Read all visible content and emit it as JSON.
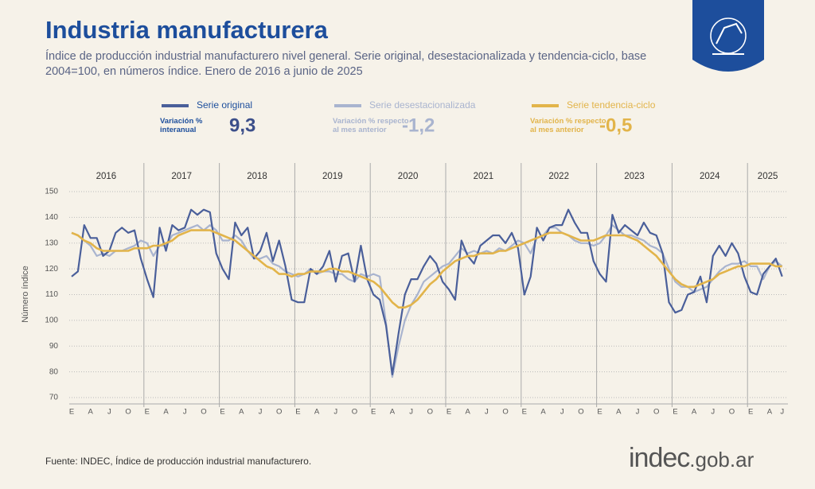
{
  "chart_data": {
    "type": "line",
    "title": "Industria manufacturera",
    "subtitle": "Índice de producción industrial manufacturero nivel general. Serie original, desestacionalizada y tendencia-ciclo, base 2004=100, en números índice. Enero de 2016 a junio de 2025",
    "y_label": "Número índice",
    "source": "Fuente: INDEC, Índice de producción industrial manufacturero.",
    "brand": {
      "name": "indec",
      "domain": ".gob.ar"
    },
    "years": [
      "2016",
      "2017",
      "2018",
      "2019",
      "2020",
      "2021",
      "2022",
      "2023",
      "2024",
      "2025"
    ],
    "categories": [
      "E",
      null,
      null,
      "A",
      null,
      null,
      "J",
      null,
      null,
      "O",
      null,
      null,
      "E",
      null,
      null,
      "A",
      null,
      null,
      "J",
      null,
      null,
      "O",
      null,
      null,
      "E",
      null,
      null,
      "A",
      null,
      null,
      "J",
      null,
      null,
      "O",
      null,
      null,
      "E",
      null,
      null,
      "A",
      null,
      null,
      "J",
      null,
      null,
      "O",
      null,
      null,
      "E",
      null,
      null,
      "A",
      null,
      null,
      "J",
      null,
      null,
      "O",
      null,
      null,
      "E",
      null,
      null,
      "A",
      null,
      null,
      "J",
      null,
      null,
      "O",
      null,
      null,
      "E",
      null,
      null,
      "A",
      null,
      null,
      "J",
      null,
      null,
      "O",
      null,
      null,
      "E",
      null,
      null,
      "A",
      null,
      null,
      "J",
      null,
      null,
      "O",
      null,
      null,
      "E",
      null,
      null,
      "A",
      null,
      null,
      "J",
      null,
      null,
      "O",
      null,
      null,
      "E",
      null,
      null,
      "A",
      null,
      "J"
    ],
    "ylim": [
      70,
      150
    ],
    "yticks": [
      70,
      80,
      90,
      100,
      110,
      120,
      130,
      140,
      150
    ],
    "grid": true,
    "series": [
      {
        "name": "Serie original",
        "color": "#4a5f9a",
        "stat_label": "Variación %\ninteranual",
        "stat_value": "9,3",
        "values": [
          117,
          119,
          137,
          132,
          132,
          125,
          127,
          134,
          136,
          134,
          135,
          124,
          116,
          109,
          136,
          127,
          137,
          135,
          136,
          143,
          141,
          143,
          142,
          126,
          120,
          116,
          138,
          133,
          136,
          124,
          127,
          134,
          123,
          131,
          121,
          108,
          107,
          107,
          120,
          118,
          121,
          127,
          115,
          125,
          126,
          115,
          129,
          116,
          110,
          108,
          98,
          79,
          95,
          110,
          116,
          116,
          121,
          125,
          122,
          115,
          112,
          108,
          131,
          125,
          122,
          129,
          131,
          133,
          133,
          130,
          134,
          128,
          110,
          117,
          136,
          131,
          136,
          137,
          137,
          143,
          138,
          134,
          134,
          123,
          118,
          115,
          141,
          134,
          137,
          135,
          133,
          138,
          134,
          133,
          126,
          107,
          103,
          104,
          110,
          111,
          117,
          107,
          125,
          129,
          125,
          130,
          126,
          117,
          111,
          110,
          118,
          121,
          124,
          117
        ]
      },
      {
        "name": "Serie desestacionalizada",
        "color": "#a9b4cf",
        "stat_label": "Variación % respecto\nal mes anterior",
        "stat_value": "-1,2",
        "values": [
          134,
          133,
          131,
          129,
          125,
          126,
          125,
          127,
          127,
          128,
          129,
          131,
          130,
          125,
          129,
          129,
          133,
          134,
          135,
          136,
          137,
          135,
          137,
          135,
          131,
          131,
          133,
          131,
          127,
          124,
          124,
          125,
          122,
          121,
          119,
          118,
          117,
          118,
          120,
          118,
          119,
          119,
          118,
          118,
          116,
          115,
          118,
          117,
          118,
          117,
          99,
          78,
          90,
          100,
          106,
          110,
          115,
          117,
          119,
          121,
          122,
          125,
          128,
          126,
          127,
          126,
          127,
          126,
          128,
          127,
          129,
          131,
          130,
          126,
          132,
          133,
          136,
          136,
          134,
          133,
          131,
          130,
          130,
          129,
          130,
          133,
          137,
          135,
          133,
          133,
          132,
          131,
          129,
          128,
          126,
          120,
          115,
          113,
          113,
          111,
          112,
          113,
          116,
          119,
          121,
          122,
          122,
          123,
          121,
          121,
          116,
          121,
          123,
          121
        ]
      },
      {
        "name": "Serie tendencia-ciclo",
        "color": "#e2b44a",
        "stat_label": "Variación % respecto\nal mes anterior",
        "stat_value": "-0,5",
        "values": [
          134,
          133,
          131,
          130,
          128,
          127,
          127,
          127,
          127,
          127,
          128,
          128,
          128,
          129,
          129,
          130,
          131,
          133,
          134,
          135,
          135,
          135,
          135,
          134,
          133,
          132,
          131,
          129,
          127,
          125,
          123,
          121,
          120,
          118,
          118,
          117,
          118,
          118,
          119,
          119,
          119,
          120,
          120,
          119,
          119,
          118,
          117,
          116,
          115,
          113,
          110,
          107,
          105,
          105,
          106,
          108,
          111,
          114,
          116,
          119,
          121,
          123,
          124,
          125,
          125,
          126,
          126,
          126,
          127,
          127,
          128,
          129,
          130,
          131,
          132,
          133,
          134,
          134,
          134,
          133,
          132,
          131,
          131,
          131,
          132,
          133,
          133,
          133,
          133,
          132,
          131,
          129,
          127,
          125,
          122,
          119,
          116,
          114,
          113,
          113,
          114,
          115,
          116,
          118,
          119,
          120,
          121,
          121,
          122,
          122,
          122,
          122,
          121,
          121
        ]
      }
    ]
  }
}
